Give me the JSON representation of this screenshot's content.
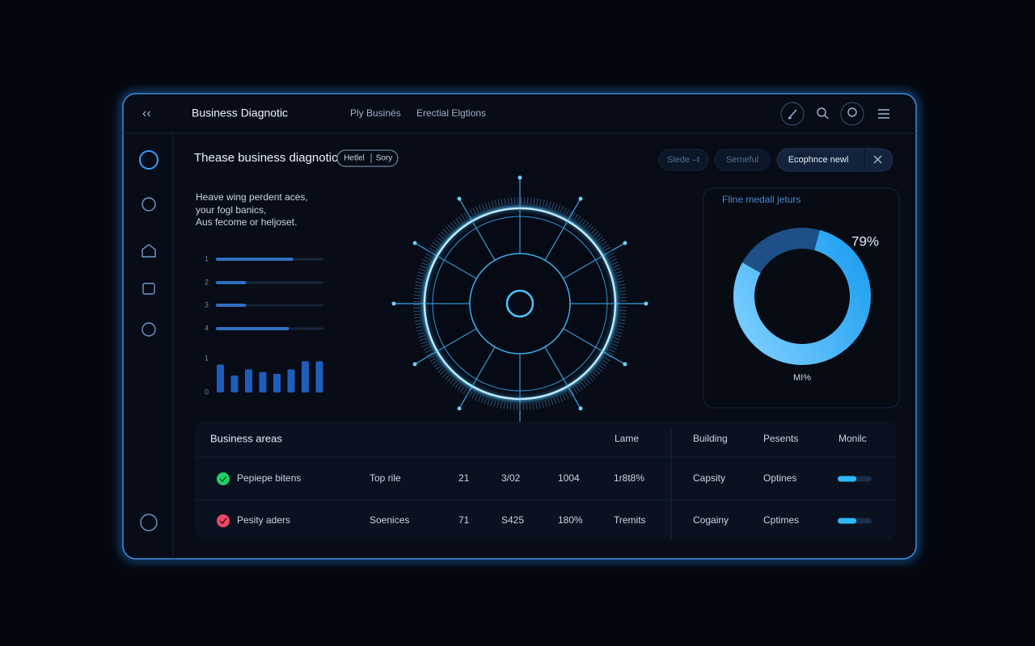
{
  "nav": {
    "title": "Business Diagnotic",
    "tabs": [
      "Ply Businés",
      "Erectial Elgtions"
    ]
  },
  "header": {
    "title": "Thease business diagnotic",
    "tags": [
      "Hetlel",
      "Sory"
    ],
    "buttons": [
      "Slede –t",
      "Semeful",
      "Ecophnce newl"
    ]
  },
  "intro": [
    "Heave wing perdent aces,",
    "your fogl banics,",
    "Aus fecome or heljoset."
  ],
  "progress": {
    "labels": [
      "1",
      "2",
      "3",
      "4"
    ],
    "values": [
      72,
      28,
      28,
      68
    ],
    "xlim": [
      0,
      100
    ]
  },
  "columns": {
    "yticks": [
      0,
      1
    ],
    "ylim": [
      0,
      1
    ],
    "values": [
      0.82,
      0.5,
      0.68,
      0.6,
      0.55,
      0.68,
      0.92,
      0.92
    ]
  },
  "donut": {
    "title": "Fline medall jeturs",
    "value": 79,
    "value_label": "79%",
    "caption": "MI%"
  },
  "table": {
    "headers": [
      "Business areas",
      "Lame",
      "Building",
      "Pesents",
      "Monilc"
    ],
    "rows": [
      {
        "cells": [
          "Pepiepe bitens",
          "Top rile",
          "21",
          "3/02",
          "1004",
          "1r8t8%",
          "Capsity",
          "Optines"
        ],
        "meter": 55
      },
      {
        "cells": [
          "Pesity aders",
          "Soenices",
          "71",
          "S425",
          "180%",
          "Tremits",
          "Cogainy",
          "Cptimes"
        ],
        "meter": 55
      }
    ]
  }
}
